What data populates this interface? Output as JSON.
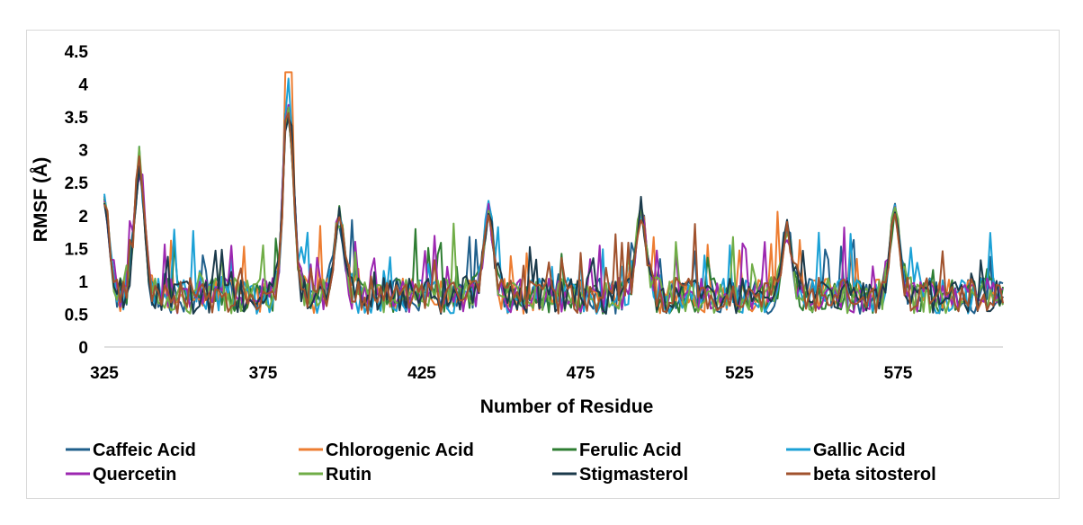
{
  "chart_data": {
    "type": "line",
    "xlabel": "Number of Residue",
    "ylabel": "RMSF (Å)",
    "xlim": [
      325,
      608
    ],
    "ylim": [
      0,
      4.5
    ],
    "x_ticks": [
      325,
      375,
      425,
      475,
      525,
      575
    ],
    "y_ticks": [
      "0",
      "0.5",
      "1",
      "1.5",
      "2",
      "2.5",
      "3",
      "3.5",
      "4",
      "4.5"
    ],
    "grid": false,
    "legend_position": "bottom",
    "key_peaks": [
      {
        "x": 325,
        "y": 2.4
      },
      {
        "x": 336,
        "y": 3.05
      },
      {
        "x": 383,
        "y": 4.18
      },
      {
        "x": 399,
        "y": 2.15
      },
      {
        "x": 446,
        "y": 2.25
      },
      {
        "x": 494,
        "y": 2.3
      },
      {
        "x": 540,
        "y": 1.95
      },
      {
        "x": 574,
        "y": 2.25
      }
    ],
    "series": [
      {
        "name": "Caffeic Acid",
        "color": "#1f5f8b"
      },
      {
        "name": "Chlorogenic Acid",
        "color": "#ed7d31"
      },
      {
        "name": "Ferulic Acid",
        "color": "#2e7d32"
      },
      {
        "name": "Gallic Acid",
        "color": "#1ba1d6"
      },
      {
        "name": "Quercetin",
        "color": "#9c27b0"
      },
      {
        "name": "Rutin",
        "color": "#70ad47"
      },
      {
        "name": "Stigmasterol",
        "color": "#1b3a4b"
      },
      {
        "name": "beta sitosterol",
        "color": "#a0522d"
      }
    ]
  }
}
